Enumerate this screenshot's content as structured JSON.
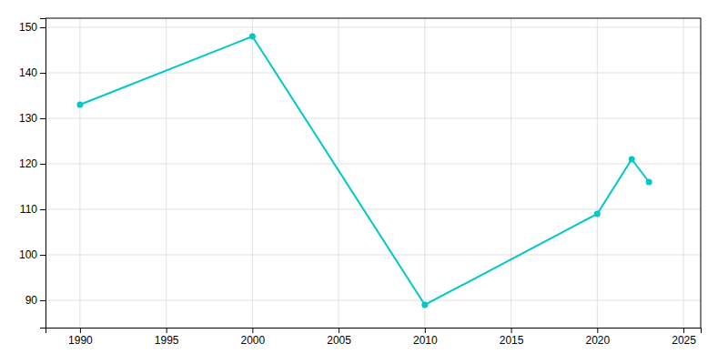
{
  "chart_data": {
    "type": "line",
    "x": [
      1990,
      2000,
      2010,
      2020,
      2022,
      2023
    ],
    "values": [
      133,
      148,
      89,
      109,
      121,
      116
    ],
    "color": "#00C8C8",
    "marker": "circle",
    "xlim": [
      1988,
      2026
    ],
    "ylim": [
      84,
      152
    ],
    "xticks": [
      1990,
      1995,
      2000,
      2005,
      2010,
      2015,
      2020,
      2025
    ],
    "yticks": [
      90,
      100,
      110,
      120,
      130,
      140,
      150
    ],
    "grid": true
  }
}
